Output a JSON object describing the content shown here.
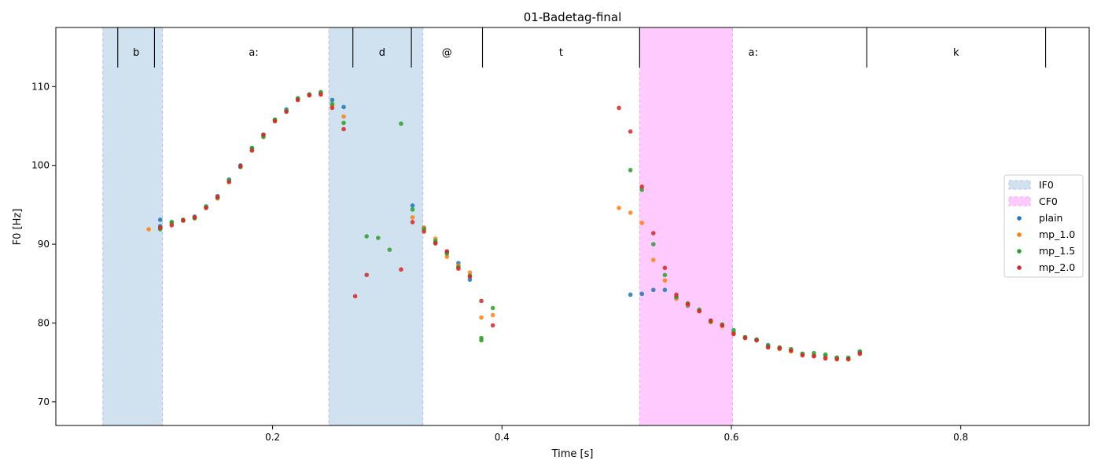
{
  "chart_data": {
    "type": "scatter",
    "title": "01-Badetag-final",
    "xlabel": "Time [s]",
    "ylabel": "F0 [Hz]",
    "xlim": [
      0.011,
      0.912
    ],
    "ylim": [
      67.0,
      117.5
    ],
    "xticks": [
      0.2,
      0.4,
      0.6,
      0.8
    ],
    "xtick_labels": [
      "0.2",
      "0.4",
      "0.6",
      "0.8"
    ],
    "yticks": [
      70,
      80,
      90,
      100,
      110
    ],
    "ytick_labels": [
      "70",
      "80",
      "90",
      "100",
      "110"
    ],
    "grid": false,
    "legend_position": "center-right",
    "regions": [
      {
        "name": "IF0",
        "color": "#b7d2e8",
        "opacity": 0.65,
        "edge": "#c7b8ea",
        "spans": [
          [
            0.052,
            0.104
          ],
          [
            0.249,
            0.331
          ]
        ]
      },
      {
        "name": "CF0",
        "color": "#ff77ff",
        "opacity": 0.38,
        "edge": "#f0a8f0",
        "spans": [
          [
            0.52,
            0.601
          ]
        ]
      }
    ],
    "segments": [
      {
        "label": "b",
        "start": 0.065,
        "end": 0.097
      },
      {
        "label": "a:",
        "start": 0.097,
        "end": 0.27
      },
      {
        "label": "d",
        "start": 0.27,
        "end": 0.321
      },
      {
        "label": "@",
        "start": 0.321,
        "end": 0.383
      },
      {
        "label": "t",
        "start": 0.383,
        "end": 0.52
      },
      {
        "label": "a:",
        "start": 0.52,
        "end": 0.718
      },
      {
        "label": "k",
        "start": 0.718,
        "end": 0.874
      }
    ],
    "series": [
      {
        "name": "plain",
        "color": "#1f77b4",
        "points": [
          [
            0.102,
            93.1
          ],
          [
            0.102,
            92.3
          ],
          [
            0.112,
            92.8
          ],
          [
            0.122,
            93.0
          ],
          [
            0.132,
            93.5
          ],
          [
            0.142,
            94.8
          ],
          [
            0.152,
            96.1
          ],
          [
            0.162,
            98.2
          ],
          [
            0.172,
            100.0
          ],
          [
            0.182,
            102.2
          ],
          [
            0.192,
            103.9
          ],
          [
            0.202,
            105.8
          ],
          [
            0.212,
            107.1
          ],
          [
            0.222,
            108.5
          ],
          [
            0.232,
            109.0
          ],
          [
            0.242,
            109.2
          ],
          [
            0.252,
            108.3
          ],
          [
            0.262,
            107.4
          ],
          [
            0.322,
            94.9
          ],
          [
            0.332,
            92.1
          ],
          [
            0.342,
            90.2
          ],
          [
            0.352,
            89.0
          ],
          [
            0.362,
            87.6
          ],
          [
            0.372,
            85.5
          ],
          [
            0.512,
            83.6
          ],
          [
            0.522,
            83.7
          ],
          [
            0.532,
            84.2
          ],
          [
            0.542,
            84.2
          ],
          [
            0.552,
            83.2
          ],
          [
            0.562,
            82.2
          ],
          [
            0.572,
            81.6
          ],
          [
            0.582,
            80.3
          ],
          [
            0.592,
            79.8
          ],
          [
            0.602,
            78.8
          ],
          [
            0.612,
            78.2
          ],
          [
            0.622,
            77.9
          ],
          [
            0.632,
            77.2
          ],
          [
            0.642,
            76.8
          ],
          [
            0.652,
            76.5
          ],
          [
            0.662,
            76.1
          ],
          [
            0.672,
            75.9
          ],
          [
            0.682,
            75.8
          ],
          [
            0.692,
            75.6
          ],
          [
            0.702,
            75.5
          ],
          [
            0.712,
            76.3
          ]
        ]
      },
      {
        "name": "mp_1.0",
        "color": "#ff7f0e",
        "points": [
          [
            0.092,
            91.9
          ],
          [
            0.102,
            92.0
          ],
          [
            0.112,
            92.6
          ],
          [
            0.122,
            93.1
          ],
          [
            0.132,
            93.3
          ],
          [
            0.142,
            94.7
          ],
          [
            0.152,
            95.8
          ],
          [
            0.162,
            97.9
          ],
          [
            0.172,
            99.8
          ],
          [
            0.182,
            101.9
          ],
          [
            0.192,
            103.7
          ],
          [
            0.202,
            105.7
          ],
          [
            0.212,
            106.9
          ],
          [
            0.222,
            108.3
          ],
          [
            0.232,
            108.9
          ],
          [
            0.242,
            109.1
          ],
          [
            0.252,
            107.6
          ],
          [
            0.262,
            106.2
          ],
          [
            0.322,
            93.4
          ],
          [
            0.332,
            92.1
          ],
          [
            0.342,
            90.7
          ],
          [
            0.352,
            88.4
          ],
          [
            0.362,
            87.3
          ],
          [
            0.372,
            86.4
          ],
          [
            0.382,
            80.7
          ],
          [
            0.392,
            81.0
          ],
          [
            0.502,
            94.6
          ],
          [
            0.512,
            94.0
          ],
          [
            0.522,
            92.7
          ],
          [
            0.532,
            88.0
          ],
          [
            0.542,
            85.4
          ],
          [
            0.552,
            83.1
          ],
          [
            0.562,
            82.3
          ],
          [
            0.572,
            81.5
          ],
          [
            0.582,
            80.1
          ],
          [
            0.592,
            79.6
          ],
          [
            0.602,
            78.7
          ],
          [
            0.612,
            78.1
          ],
          [
            0.622,
            77.8
          ],
          [
            0.632,
            77.0
          ],
          [
            0.642,
            76.7
          ],
          [
            0.652,
            76.4
          ],
          [
            0.662,
            76.0
          ],
          [
            0.672,
            75.8
          ],
          [
            0.682,
            75.6
          ],
          [
            0.692,
            75.5
          ],
          [
            0.702,
            75.4
          ],
          [
            0.712,
            76.1
          ]
        ]
      },
      {
        "name": "mp_1.5",
        "color": "#2ca02c",
        "points": [
          [
            0.102,
            91.9
          ],
          [
            0.112,
            92.8
          ],
          [
            0.122,
            93.1
          ],
          [
            0.132,
            93.3
          ],
          [
            0.142,
            94.7
          ],
          [
            0.152,
            95.9
          ],
          [
            0.162,
            98.1
          ],
          [
            0.172,
            99.8
          ],
          [
            0.182,
            102.2
          ],
          [
            0.192,
            103.6
          ],
          [
            0.202,
            105.8
          ],
          [
            0.212,
            106.9
          ],
          [
            0.222,
            108.5
          ],
          [
            0.232,
            109.0
          ],
          [
            0.242,
            109.3
          ],
          [
            0.252,
            107.8
          ],
          [
            0.262,
            105.4
          ],
          [
            0.282,
            91.0
          ],
          [
            0.292,
            90.8
          ],
          [
            0.302,
            89.3
          ],
          [
            0.312,
            105.3
          ],
          [
            0.322,
            94.4
          ],
          [
            0.332,
            91.9
          ],
          [
            0.342,
            90.4
          ],
          [
            0.352,
            88.8
          ],
          [
            0.362,
            87.1
          ],
          [
            0.372,
            86.0
          ],
          [
            0.382,
            77.8
          ],
          [
            0.382,
            78.1
          ],
          [
            0.392,
            81.9
          ],
          [
            0.512,
            99.4
          ],
          [
            0.522,
            96.9
          ],
          [
            0.532,
            90.0
          ],
          [
            0.542,
            86.1
          ],
          [
            0.552,
            83.3
          ],
          [
            0.562,
            82.5
          ],
          [
            0.572,
            81.7
          ],
          [
            0.582,
            80.2
          ],
          [
            0.592,
            79.8
          ],
          [
            0.602,
            79.1
          ],
          [
            0.612,
            78.2
          ],
          [
            0.622,
            77.9
          ],
          [
            0.632,
            77.1
          ],
          [
            0.642,
            76.9
          ],
          [
            0.652,
            76.7
          ],
          [
            0.662,
            76.1
          ],
          [
            0.672,
            76.2
          ],
          [
            0.682,
            76.0
          ],
          [
            0.692,
            75.6
          ],
          [
            0.702,
            75.6
          ],
          [
            0.712,
            76.4
          ]
        ]
      },
      {
        "name": "mp_2.0",
        "color": "#d62728",
        "points": [
          [
            0.102,
            92.1
          ],
          [
            0.112,
            92.4
          ],
          [
            0.122,
            93.0
          ],
          [
            0.132,
            93.4
          ],
          [
            0.142,
            94.6
          ],
          [
            0.152,
            96.0
          ],
          [
            0.162,
            97.9
          ],
          [
            0.172,
            99.9
          ],
          [
            0.182,
            101.9
          ],
          [
            0.192,
            103.9
          ],
          [
            0.202,
            105.6
          ],
          [
            0.212,
            106.8
          ],
          [
            0.222,
            108.3
          ],
          [
            0.232,
            108.9
          ],
          [
            0.242,
            109.0
          ],
          [
            0.252,
            107.3
          ],
          [
            0.262,
            104.6
          ],
          [
            0.272,
            83.4
          ],
          [
            0.282,
            86.1
          ],
          [
            0.312,
            86.8
          ],
          [
            0.322,
            92.8
          ],
          [
            0.332,
            91.6
          ],
          [
            0.342,
            90.1
          ],
          [
            0.352,
            89.1
          ],
          [
            0.362,
            86.9
          ],
          [
            0.372,
            85.9
          ],
          [
            0.382,
            82.8
          ],
          [
            0.392,
            79.7
          ],
          [
            0.502,
            107.3
          ],
          [
            0.512,
            104.3
          ],
          [
            0.522,
            97.3
          ],
          [
            0.532,
            91.4
          ],
          [
            0.542,
            87.0
          ],
          [
            0.552,
            83.6
          ],
          [
            0.562,
            82.4
          ],
          [
            0.572,
            81.5
          ],
          [
            0.582,
            80.3
          ],
          [
            0.592,
            79.7
          ],
          [
            0.602,
            78.6
          ],
          [
            0.612,
            78.1
          ],
          [
            0.622,
            77.8
          ],
          [
            0.632,
            76.9
          ],
          [
            0.642,
            76.8
          ],
          [
            0.652,
            76.5
          ],
          [
            0.662,
            75.9
          ],
          [
            0.672,
            75.8
          ],
          [
            0.682,
            75.5
          ],
          [
            0.692,
            75.4
          ],
          [
            0.702,
            75.4
          ],
          [
            0.712,
            76.1
          ]
        ]
      }
    ]
  }
}
